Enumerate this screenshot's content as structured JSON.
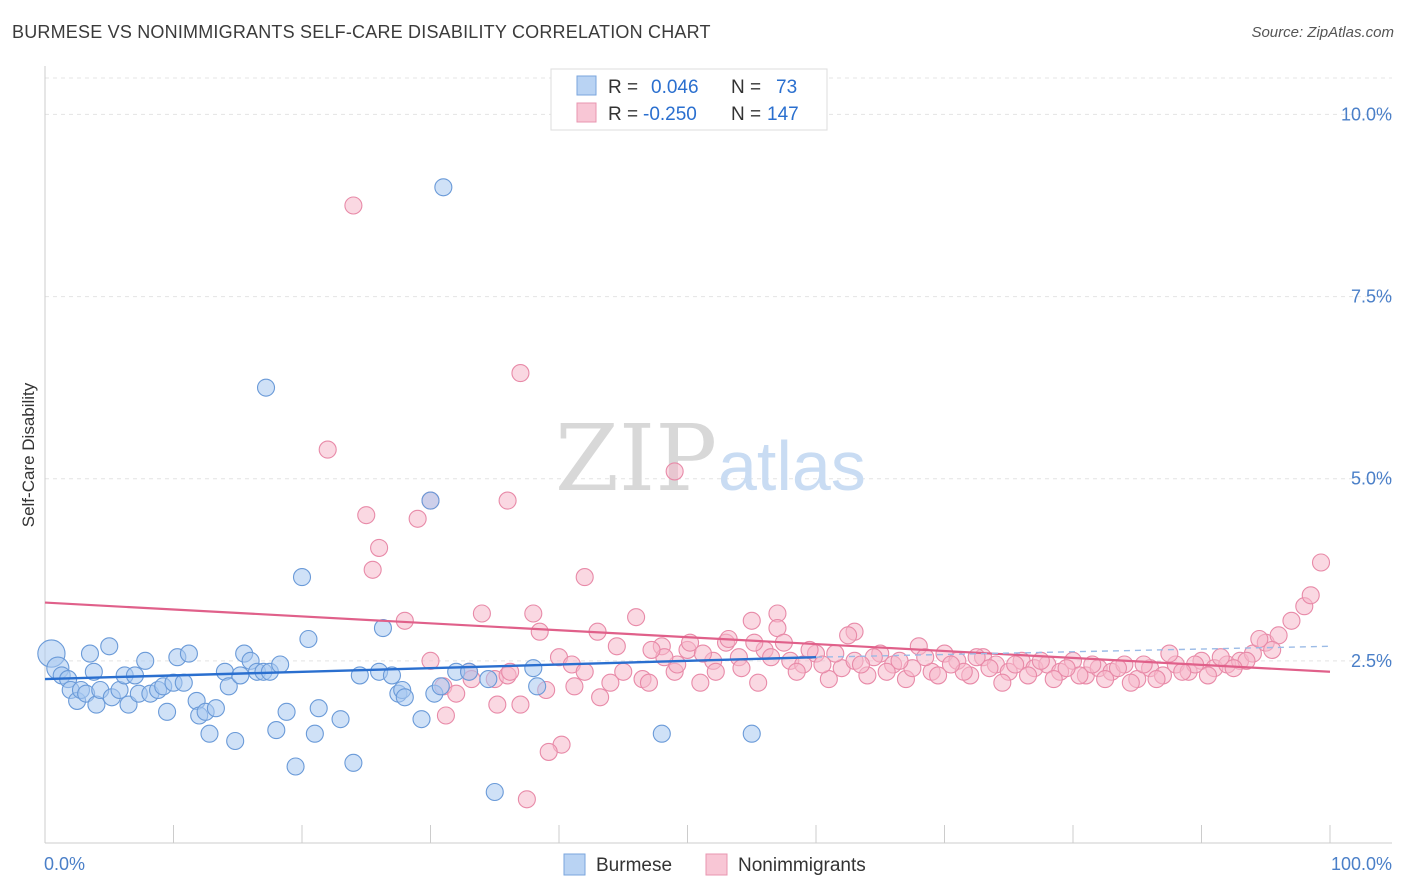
{
  "header": {
    "title": "BURMESE VS NONIMMIGRANTS SELF-CARE DISABILITY CORRELATION CHART",
    "source": "Source: ZipAtlas.com"
  },
  "watermark": {
    "zip": "ZIP",
    "atlas": "atlas"
  },
  "colors": {
    "burmese_fill": "#a8c8f0",
    "burmese_stroke": "#6a9ad8",
    "burmese_line": "#2a6fcf",
    "nonimm_fill": "#f5b8cb",
    "nonimm_stroke": "#e88aa8",
    "nonimm_line": "#e0608a",
    "tick": "#4a7fc8"
  },
  "chart_data": {
    "type": "scatter",
    "title": "BURMESE VS NONIMMIGRANTS SELF-CARE DISABILITY CORRELATION CHART",
    "xlabel": "",
    "ylabel": "Self-Care Disability",
    "xlim": [
      0,
      100
    ],
    "ylim": [
      0,
      10.5
    ],
    "x_tick_labels": [
      "0.0%",
      "100.0%"
    ],
    "y_ticks": [
      2.5,
      5.0,
      7.5,
      10.0
    ],
    "y_tick_labels": [
      "2.5%",
      "5.0%",
      "7.5%",
      "10.0%"
    ],
    "grid": "horizontal dashed",
    "legend": {
      "placement": "top-center",
      "entries": [
        {
          "r_label": "R =",
          "r_value": "0.046",
          "n_label": "N =",
          "n_value": "73"
        },
        {
          "r_label": "R =",
          "r_value": "-0.250",
          "n_label": "N =",
          "n_value": "147"
        }
      ]
    },
    "bottom_legend": [
      "Burmese",
      "Nonimmigrants"
    ],
    "series": [
      {
        "name": "Burmese",
        "trend": {
          "x": [
            0,
            60
          ],
          "y": [
            2.25,
            2.55
          ],
          "dashed_to": [
            100,
            2.7
          ]
        },
        "points": [
          [
            0.5,
            2.6,
            1.6
          ],
          [
            1,
            2.4,
            1.3
          ],
          [
            1.3,
            2.3,
            1.0
          ],
          [
            1.8,
            2.25,
            1.0
          ],
          [
            2,
            2.1,
            1.0
          ],
          [
            2.5,
            1.95,
            1.0
          ],
          [
            2.8,
            2.1,
            1.0
          ],
          [
            3.2,
            2.05,
            1.0
          ],
          [
            3.5,
            2.6,
            1.0
          ],
          [
            3.8,
            2.35,
            1.0
          ],
          [
            4,
            1.9,
            1.0
          ],
          [
            4.3,
            2.1,
            1.0
          ],
          [
            5,
            2.7,
            1.0
          ],
          [
            5.2,
            2.0,
            1.0
          ],
          [
            5.8,
            2.1,
            1.0
          ],
          [
            6.2,
            2.3,
            1.0
          ],
          [
            6.5,
            1.9,
            1.0
          ],
          [
            7,
            2.3,
            1.0
          ],
          [
            7.3,
            2.05,
            1.0
          ],
          [
            7.8,
            2.5,
            1.0
          ],
          [
            8.2,
            2.05,
            1.0
          ],
          [
            8.8,
            2.1,
            1.0
          ],
          [
            9.2,
            2.15,
            1.0
          ],
          [
            9.5,
            1.8,
            1.0
          ],
          [
            10,
            2.2,
            1.0
          ],
          [
            10.3,
            2.55,
            1.0
          ],
          [
            10.8,
            2.2,
            1.0
          ],
          [
            11.2,
            2.6,
            1.0
          ],
          [
            11.8,
            1.95,
            1.0
          ],
          [
            12,
            1.75,
            1.0
          ],
          [
            12.5,
            1.8,
            1.0
          ],
          [
            12.8,
            1.5,
            1.0
          ],
          [
            13.3,
            1.85,
            1.0
          ],
          [
            14,
            2.35,
            1.0
          ],
          [
            14.3,
            2.15,
            1.0
          ],
          [
            14.8,
            1.4,
            1.0
          ],
          [
            15.2,
            2.3,
            1.0
          ],
          [
            15.5,
            2.6,
            1.0
          ],
          [
            16,
            2.5,
            1.0
          ],
          [
            16.5,
            2.35,
            1.0
          ],
          [
            17,
            2.35,
            1.0
          ],
          [
            17.2,
            6.25,
            1.0
          ],
          [
            17.5,
            2.35,
            1.0
          ],
          [
            18,
            1.55,
            1.0
          ],
          [
            18.3,
            2.45,
            1.0
          ],
          [
            18.8,
            1.8,
            1.0
          ],
          [
            19.5,
            1.05,
            1.0
          ],
          [
            20,
            3.65,
            1.0
          ],
          [
            20.5,
            2.8,
            1.0
          ],
          [
            21,
            1.5,
            1.0
          ],
          [
            21.3,
            1.85,
            1.0
          ],
          [
            23,
            1.7,
            1.0
          ],
          [
            24,
            1.1,
            1.0
          ],
          [
            24.5,
            2.3,
            1.0
          ],
          [
            26,
            2.35,
            1.0
          ],
          [
            26.3,
            2.95,
            1.0
          ],
          [
            27,
            2.3,
            1.0
          ],
          [
            27.5,
            2.05,
            1.0
          ],
          [
            27.8,
            2.1,
            1.0
          ],
          [
            28,
            2.0,
            1.0
          ],
          [
            29.3,
            1.7,
            1.0
          ],
          [
            30,
            4.7,
            1.0
          ],
          [
            30.3,
            2.05,
            1.0
          ],
          [
            30.8,
            2.15,
            1.0
          ],
          [
            31,
            9.0,
            1.0
          ],
          [
            32,
            2.35,
            1.0
          ],
          [
            33,
            2.35,
            1.0
          ],
          [
            34.5,
            2.25,
            1.0
          ],
          [
            35,
            0.7,
            1.0
          ],
          [
            38,
            2.4,
            1.0
          ],
          [
            38.3,
            2.15,
            1.0
          ],
          [
            48,
            1.5,
            1.0
          ],
          [
            55,
            1.5,
            1.0
          ]
        ]
      },
      {
        "name": "Nonimmigrants",
        "trend": {
          "x": [
            0,
            100
          ],
          "y": [
            3.3,
            2.35
          ]
        },
        "points": [
          [
            24,
            8.75,
            1.0
          ],
          [
            37,
            6.45,
            1.0
          ],
          [
            22,
            5.4,
            1.0
          ],
          [
            49,
            5.1,
            1.0
          ],
          [
            25,
            4.5,
            1.0
          ],
          [
            26,
            4.05,
            1.0
          ],
          [
            30,
            4.7,
            1.0
          ],
          [
            36,
            4.7,
            1.0
          ],
          [
            29,
            4.45,
            1.0
          ],
          [
            25.5,
            3.75,
            1.0
          ],
          [
            42,
            3.65,
            1.0
          ],
          [
            28,
            3.05,
            1.0
          ],
          [
            34,
            3.15,
            1.0
          ],
          [
            38,
            3.15,
            1.0
          ],
          [
            46,
            3.1,
            1.0
          ],
          [
            55,
            3.05,
            1.0
          ],
          [
            57,
            3.15,
            1.0
          ],
          [
            63,
            2.9,
            1.0
          ],
          [
            30,
            2.5,
            1.0
          ],
          [
            31,
            2.15,
            1.0
          ],
          [
            32,
            2.05,
            1.0
          ],
          [
            33,
            2.35,
            1.0
          ],
          [
            35,
            2.25,
            1.0
          ],
          [
            36,
            2.3,
            1.0
          ],
          [
            37,
            1.9,
            1.0
          ],
          [
            38.5,
            2.9,
            1.0
          ],
          [
            39,
            2.1,
            1.0
          ],
          [
            40,
            2.55,
            1.0
          ],
          [
            41,
            2.45,
            1.0
          ],
          [
            42,
            2.35,
            1.0
          ],
          [
            43,
            2.9,
            1.0
          ],
          [
            44,
            2.2,
            1.0
          ],
          [
            45,
            2.35,
            1.0
          ],
          [
            46.5,
            2.25,
            1.0
          ],
          [
            47,
            2.2,
            1.0
          ],
          [
            48,
            2.7,
            1.0
          ],
          [
            49,
            2.35,
            1.0
          ],
          [
            50,
            2.65,
            1.0
          ],
          [
            51,
            2.2,
            1.0
          ],
          [
            52,
            2.5,
            1.0
          ],
          [
            53,
            2.75,
            1.0
          ],
          [
            54,
            2.55,
            1.0
          ],
          [
            55.5,
            2.2,
            1.0
          ],
          [
            56,
            2.65,
            1.0
          ],
          [
            57,
            2.95,
            1.0
          ],
          [
            58,
            2.5,
            1.0
          ],
          [
            59,
            2.45,
            1.0
          ],
          [
            60,
            2.6,
            1.0
          ],
          [
            61,
            2.25,
            1.0
          ],
          [
            62,
            2.4,
            1.0
          ],
          [
            63,
            2.5,
            1.0
          ],
          [
            64,
            2.3,
            1.0
          ],
          [
            65,
            2.6,
            1.0
          ],
          [
            66,
            2.45,
            1.0
          ],
          [
            67,
            2.25,
            1.0
          ],
          [
            68,
            2.7,
            1.0
          ],
          [
            69,
            2.35,
            1.0
          ],
          [
            70,
            2.6,
            1.0
          ],
          [
            71,
            2.5,
            1.0
          ],
          [
            72,
            2.3,
            1.0
          ],
          [
            73,
            2.55,
            1.0
          ],
          [
            74,
            2.45,
            1.0
          ],
          [
            75,
            2.35,
            1.0
          ],
          [
            76,
            2.5,
            1.0
          ],
          [
            77,
            2.4,
            1.0
          ],
          [
            78,
            2.45,
            1.0
          ],
          [
            79,
            2.35,
            1.0
          ],
          [
            80,
            2.5,
            1.0
          ],
          [
            81,
            2.3,
            1.0
          ],
          [
            82,
            2.4,
            1.0
          ],
          [
            83,
            2.35,
            1.0
          ],
          [
            84,
            2.45,
            1.0
          ],
          [
            85,
            2.25,
            1.0
          ],
          [
            86,
            2.4,
            1.0
          ],
          [
            87,
            2.3,
            1.0
          ],
          [
            88,
            2.45,
            1.0
          ],
          [
            89,
            2.35,
            1.0
          ],
          [
            90,
            2.5,
            1.0
          ],
          [
            91,
            2.4,
            1.0
          ],
          [
            92,
            2.45,
            1.0
          ],
          [
            93,
            2.5,
            1.0
          ],
          [
            94,
            2.6,
            1.0
          ],
          [
            95,
            2.75,
            1.0
          ],
          [
            96,
            2.85,
            1.0
          ],
          [
            97,
            3.05,
            1.0
          ],
          [
            98,
            3.25,
            1.0
          ],
          [
            98.5,
            3.4,
            1.0
          ],
          [
            99.3,
            3.85,
            1.0
          ],
          [
            94.5,
            2.8,
            1.0
          ],
          [
            95.5,
            2.65,
            1.0
          ],
          [
            93.5,
            2.5,
            1.0
          ],
          [
            92.5,
            2.4,
            1.0
          ],
          [
            91.5,
            2.55,
            1.0
          ],
          [
            90.5,
            2.3,
            1.0
          ],
          [
            89.5,
            2.45,
            1.0
          ],
          [
            88.5,
            2.35,
            1.0
          ],
          [
            87.5,
            2.6,
            1.0
          ],
          [
            86.5,
            2.25,
            1.0
          ],
          [
            85.5,
            2.45,
            1.0
          ],
          [
            84.5,
            2.2,
            1.0
          ],
          [
            83.5,
            2.4,
            1.0
          ],
          [
            82.5,
            2.25,
            1.0
          ],
          [
            81.5,
            2.45,
            1.0
          ],
          [
            80.5,
            2.3,
            1.0
          ],
          [
            79.5,
            2.4,
            1.0
          ],
          [
            78.5,
            2.25,
            1.0
          ],
          [
            77.5,
            2.5,
            1.0
          ],
          [
            76.5,
            2.3,
            1.0
          ],
          [
            75.5,
            2.45,
            1.0
          ],
          [
            74.5,
            2.2,
            1.0
          ],
          [
            73.5,
            2.4,
            1.0
          ],
          [
            72.5,
            2.55,
            1.0
          ],
          [
            71.5,
            2.35,
            1.0
          ],
          [
            70.5,
            2.45,
            1.0
          ],
          [
            69.5,
            2.3,
            1.0
          ],
          [
            68.5,
            2.55,
            1.0
          ],
          [
            67.5,
            2.4,
            1.0
          ],
          [
            66.5,
            2.5,
            1.0
          ],
          [
            65.5,
            2.35,
            1.0
          ],
          [
            64.5,
            2.55,
            1.0
          ],
          [
            63.5,
            2.45,
            1.0
          ],
          [
            62.5,
            2.85,
            1.0
          ],
          [
            61.5,
            2.6,
            1.0
          ],
          [
            60.5,
            2.45,
            1.0
          ],
          [
            59.5,
            2.65,
            1.0
          ],
          [
            58.5,
            2.35,
            1.0
          ],
          [
            57.5,
            2.75,
            1.0
          ],
          [
            56.5,
            2.55,
            1.0
          ],
          [
            55.2,
            2.75,
            1.0
          ],
          [
            54.2,
            2.4,
            1.0
          ],
          [
            53.2,
            2.8,
            1.0
          ],
          [
            52.2,
            2.35,
            1.0
          ],
          [
            51.2,
            2.6,
            1.0
          ],
          [
            50.2,
            2.75,
            1.0
          ],
          [
            49.2,
            2.45,
            1.0
          ],
          [
            48.2,
            2.55,
            1.0
          ],
          [
            47.2,
            2.65,
            1.0
          ],
          [
            44.5,
            2.7,
            1.0
          ],
          [
            43.2,
            2.0,
            1.0
          ],
          [
            41.2,
            2.15,
            1.0
          ],
          [
            40.2,
            1.35,
            1.0
          ],
          [
            39.2,
            1.25,
            1.0
          ],
          [
            37.5,
            0.6,
            1.0
          ],
          [
            36.2,
            2.35,
            1.0
          ],
          [
            35.2,
            1.9,
            1.0
          ],
          [
            33.2,
            2.25,
            1.0
          ],
          [
            31.2,
            1.75,
            1.0
          ]
        ]
      }
    ]
  }
}
